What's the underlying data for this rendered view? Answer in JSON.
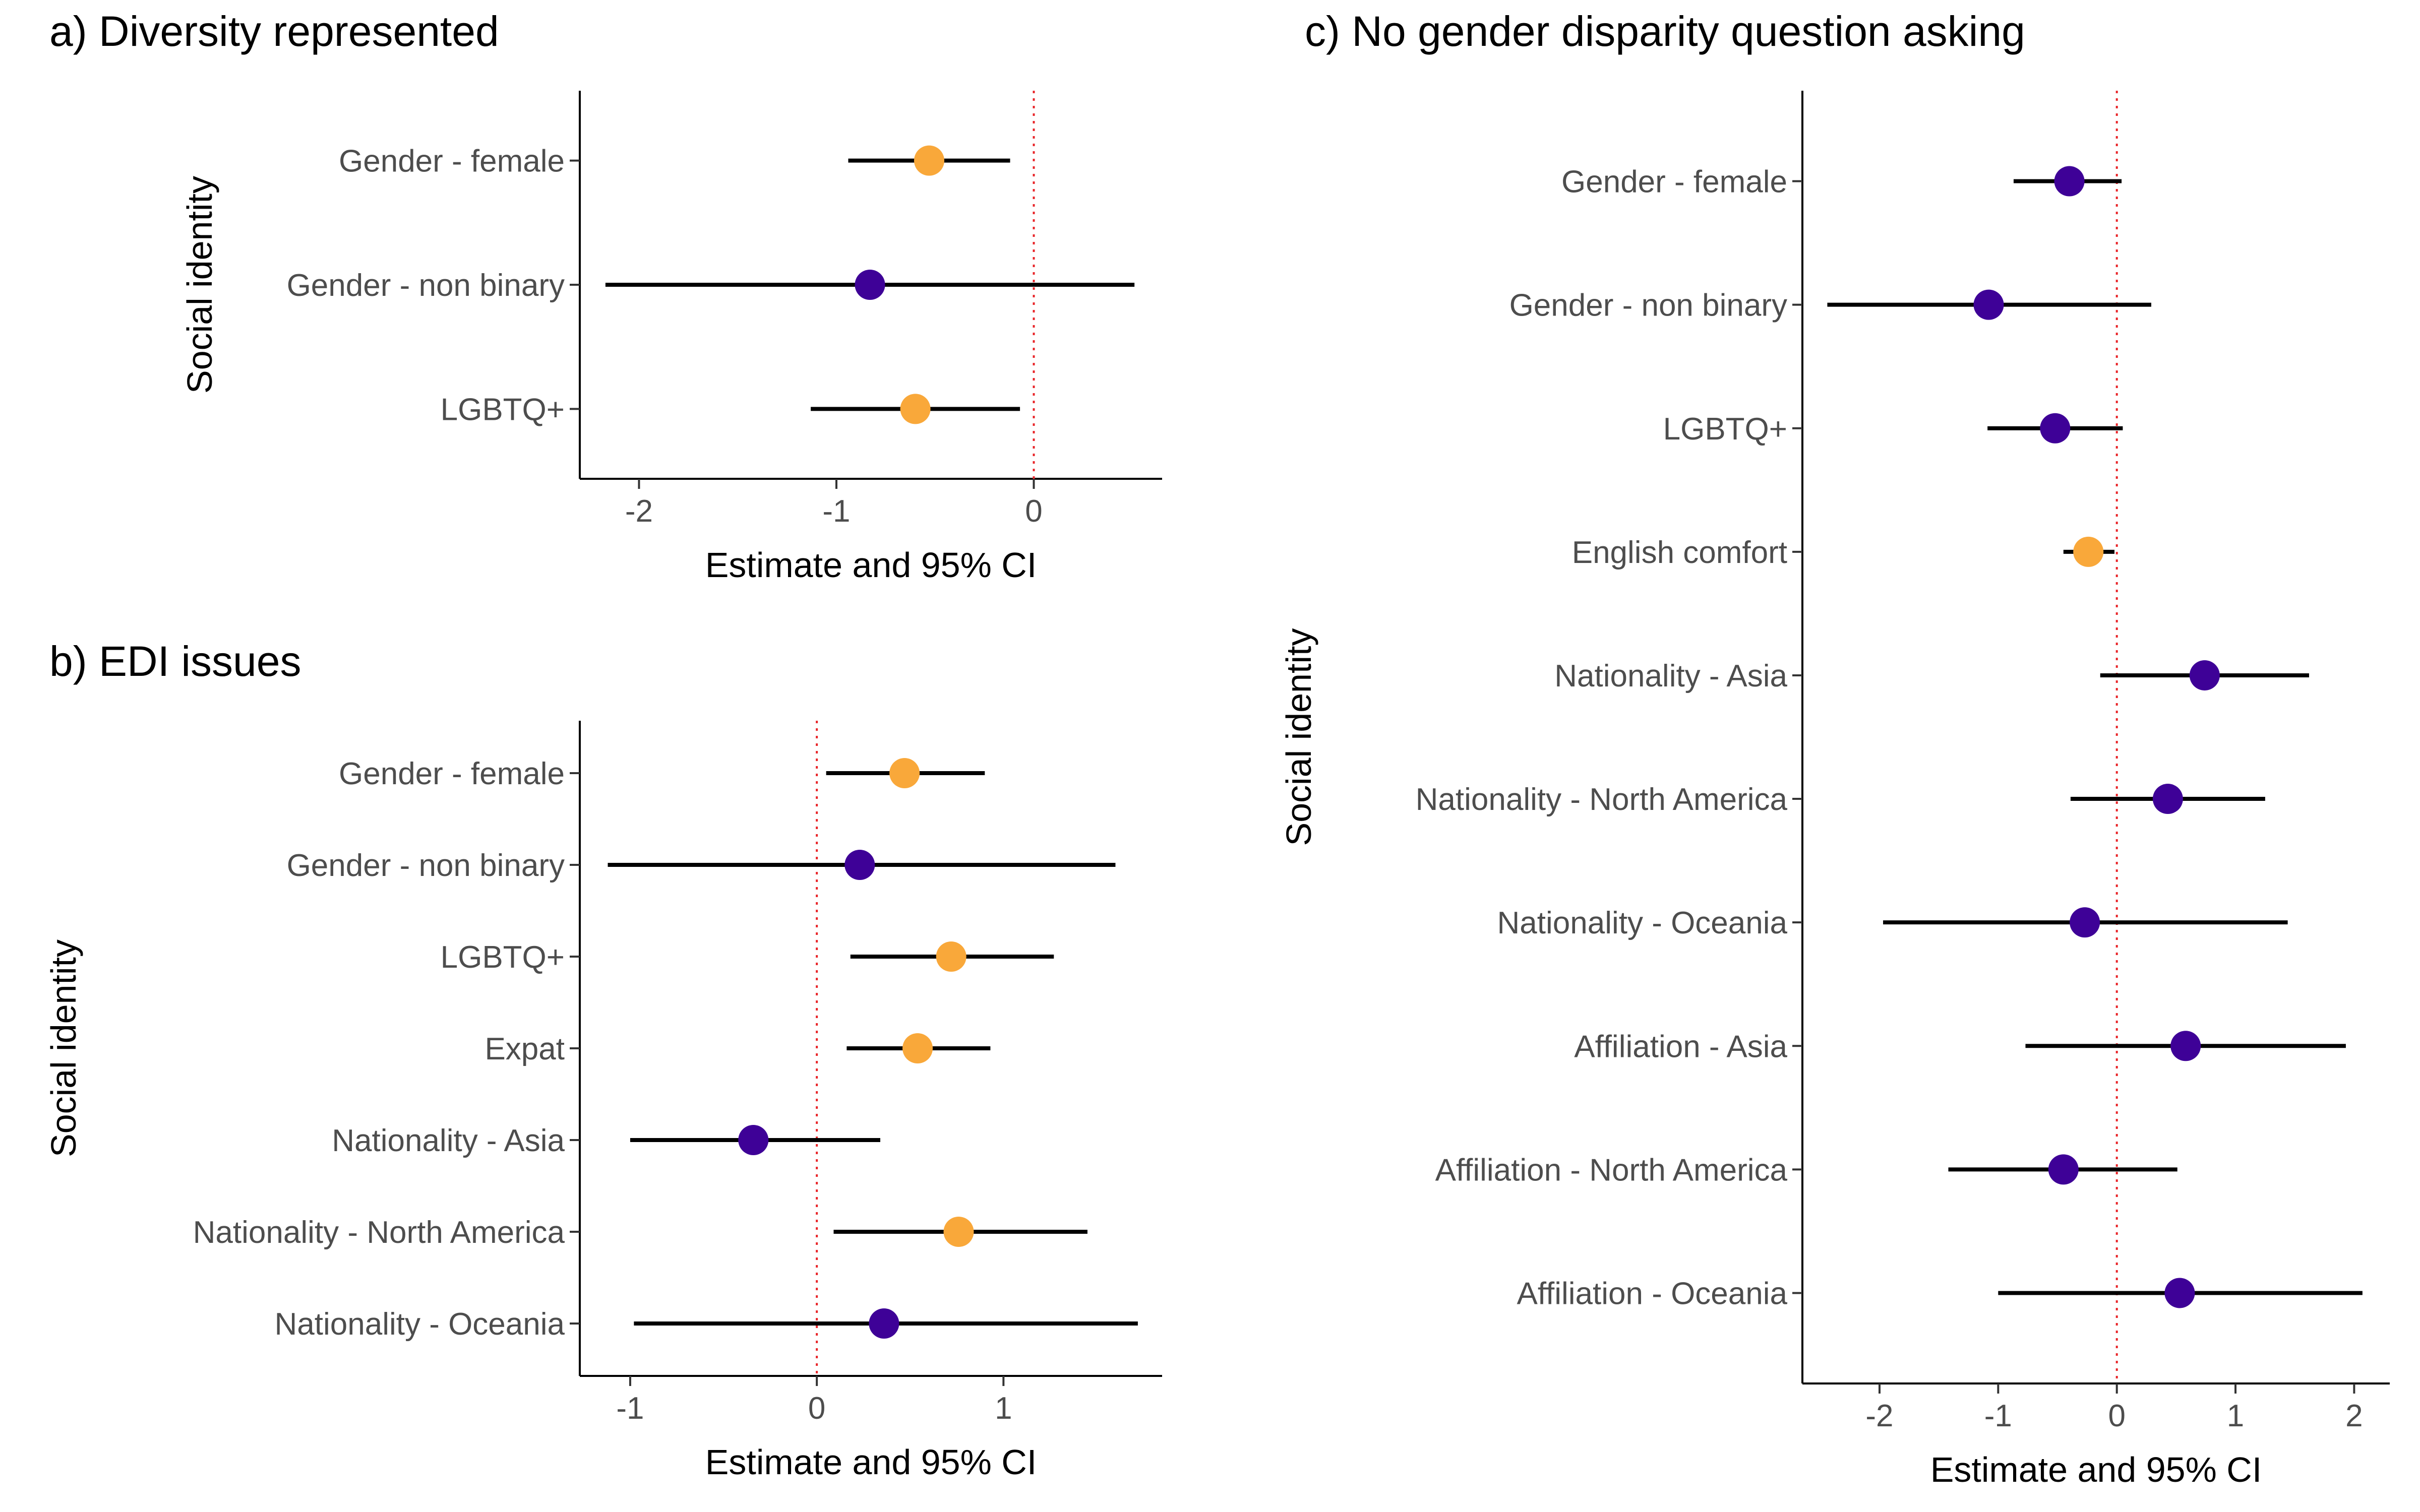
{
  "colors": {
    "significant": "#F9A83A",
    "nonsignificant": "#3E0197",
    "reference_line": "#E8262A",
    "ci_line": "#000000"
  },
  "chart_data": [
    {
      "type": "scatter",
      "variant": "forest-plot",
      "title": "a) Diversity represented",
      "xlabel": "Estimate and 95% CI",
      "ylabel": "Social identity",
      "xlim": [
        -2.3,
        0.65
      ],
      "xticks": [
        -2,
        -1,
        0
      ],
      "xtick_labels": [
        "-2",
        "-1",
        "0"
      ],
      "reference_x": 0,
      "grid": false,
      "categories": [
        "Gender - female",
        "Gender - non binary",
        "LGBTQ+"
      ],
      "estimate": [
        -0.53,
        -0.83,
        -0.6
      ],
      "ci_low": [
        -0.94,
        -2.17,
        -1.13
      ],
      "ci_high": [
        -0.12,
        0.51,
        -0.07
      ],
      "significant": [
        true,
        false,
        true
      ]
    },
    {
      "type": "scatter",
      "variant": "forest-plot",
      "title": "b) EDI issues",
      "xlabel": "Estimate and 95% CI",
      "ylabel": "Social identity",
      "xlim": [
        -1.27,
        1.85
      ],
      "xticks": [
        -1,
        0,
        1
      ],
      "xtick_labels": [
        "-1",
        "0",
        "1"
      ],
      "reference_x": 0,
      "grid": false,
      "categories": [
        "Gender - female",
        "Gender - non binary",
        "LGBTQ+",
        "Expat",
        "Nationality - Asia",
        "Nationality - North America",
        "Nationality - Oceania"
      ],
      "estimate": [
        0.47,
        0.23,
        0.72,
        0.54,
        -0.34,
        0.76,
        0.36
      ],
      "ci_low": [
        0.05,
        -1.12,
        0.18,
        0.16,
        -1.0,
        0.09,
        -0.98
      ],
      "ci_high": [
        0.9,
        1.6,
        1.27,
        0.93,
        0.34,
        1.45,
        1.72
      ],
      "significant": [
        true,
        false,
        true,
        true,
        false,
        true,
        false
      ]
    },
    {
      "type": "scatter",
      "variant": "forest-plot",
      "title": "c) No gender disparity question asking",
      "xlabel": "Estimate and 95% CI",
      "ylabel": "Social identity",
      "xlim": [
        -2.65,
        2.3
      ],
      "xticks": [
        -2,
        -1,
        0,
        1,
        2
      ],
      "xtick_labels": [
        "-2",
        "-1",
        "0",
        "1",
        "2"
      ],
      "reference_x": 0,
      "grid": false,
      "categories": [
        "Gender - female",
        "Gender - non binary",
        "LGBTQ+",
        "English comfort",
        "Nationality - Asia",
        "Nationality - North America",
        "Nationality - Oceania",
        "Affiliation - Asia",
        "Affiliation - North America",
        "Affiliation - Oceania"
      ],
      "estimate": [
        -0.4,
        -1.08,
        -0.52,
        -0.24,
        0.74,
        0.43,
        -0.27,
        0.58,
        -0.45,
        0.53
      ],
      "ci_low": [
        -0.87,
        -2.44,
        -1.09,
        -0.45,
        -0.14,
        -0.39,
        -1.97,
        -0.77,
        -1.42,
        -1.0
      ],
      "ci_high": [
        0.04,
        0.29,
        0.05,
        -0.02,
        1.62,
        1.25,
        1.44,
        1.93,
        0.51,
        2.07
      ],
      "significant": [
        false,
        false,
        false,
        true,
        false,
        false,
        false,
        false,
        false,
        false
      ]
    }
  ]
}
